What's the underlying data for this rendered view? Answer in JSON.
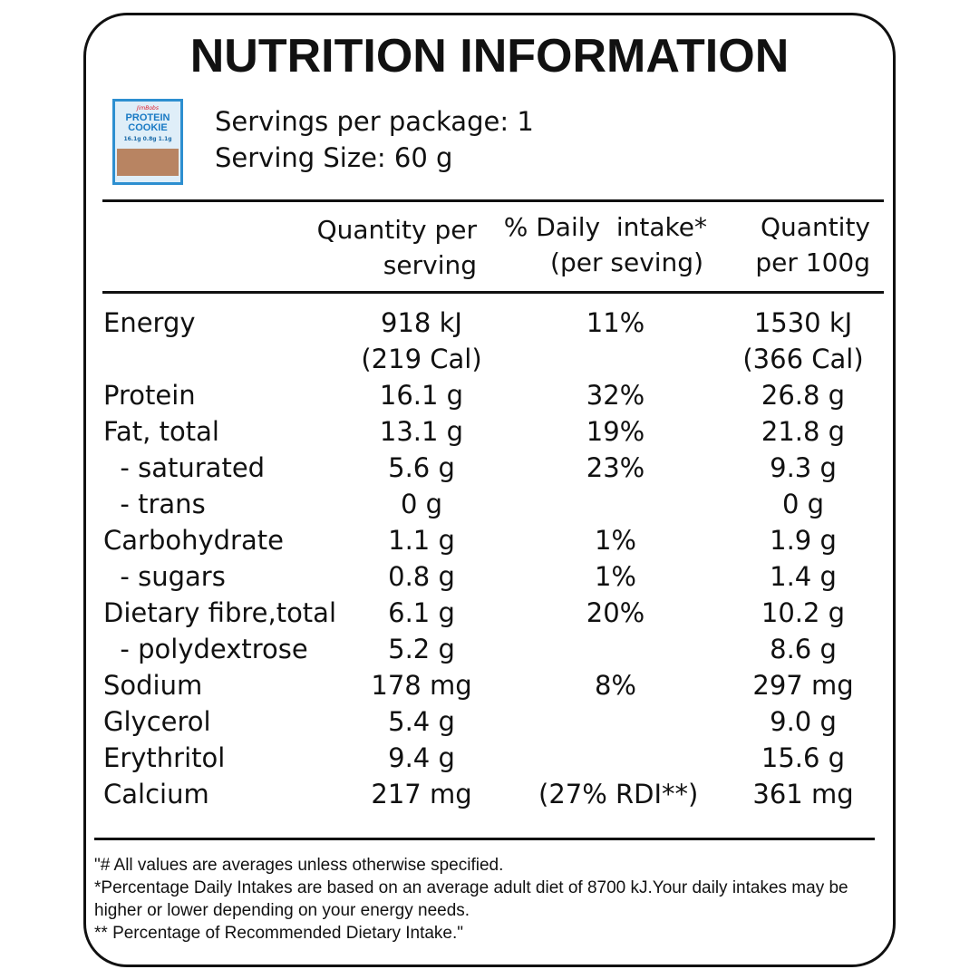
{
  "title": "NUTRITION INFORMATION",
  "product_image": {
    "brand": "JimBobs",
    "name": "PROTEIN COOKIE",
    "stats": "16.1g 0.8g 1.1g",
    "color": "#2d8fd0"
  },
  "servings_per_package": "Servings per package: 1",
  "serving_size": "Serving Size: 60 g",
  "headers": {
    "qty_serving_1": "Quantity per",
    "qty_serving_2": "serving",
    "daily_1": "% Daily  intake*",
    "daily_2": "(per seving)",
    "per100_1": "Quantity",
    "per100_2": "per 100g"
  },
  "rows": [
    {
      "label": "Energy",
      "serving": "918 kJ",
      "daily": "11%",
      "per100": "1530 kJ"
    },
    {
      "label": "",
      "serving": "(219 Cal)",
      "daily": "",
      "per100": "(366 Cal)"
    },
    {
      "label": "Protein",
      "serving": "16.1 g",
      "daily": "32%",
      "per100": "26.8 g"
    },
    {
      "label": "Fat, total",
      "serving": "13.1 g",
      "daily": "19%",
      "per100": "21.8 g"
    },
    {
      "label": "  - saturated",
      "serving": "5.6 g",
      "daily": "23%",
      "per100": "9.3 g"
    },
    {
      "label": "  - trans",
      "serving": "0 g",
      "daily": "",
      "per100": "0 g"
    },
    {
      "label": "Carbohydrate",
      "serving": "1.1 g",
      "daily": "1%",
      "per100": "1.9 g"
    },
    {
      "label": "  - sugars",
      "serving": "0.8 g",
      "daily": "1%",
      "per100": "1.4 g"
    },
    {
      "label": "Dietary fibre,total",
      "serving": "6.1 g",
      "daily": "20%",
      "per100": "10.2 g"
    },
    {
      "label": "  - polydextrose",
      "serving": "5.2 g",
      "daily": "",
      "per100": "8.6 g"
    },
    {
      "label": "Sodium",
      "serving": "178 mg",
      "daily": "8%",
      "per100": "297 mg"
    },
    {
      "label": "Glycerol",
      "serving": "5.4 g",
      "daily": "",
      "per100": "9.0 g"
    },
    {
      "label": "Erythritol",
      "serving": "9.4 g",
      "daily": "",
      "per100": "15.6 g"
    },
    {
      "label": "Calcium",
      "serving": "217 mg",
      "daily": "(27% RDI**)",
      "per100": "361 mg"
    }
  ],
  "footnotes": [
    "\"# All values are averages unless otherwise specified.",
    "*Percentage Daily Intakes are based on an average adult diet of 8700 kJ.Your daily intakes may be higher or lower depending on your energy needs.",
    "** Percentage of Recommended Dietary Intake.\""
  ]
}
